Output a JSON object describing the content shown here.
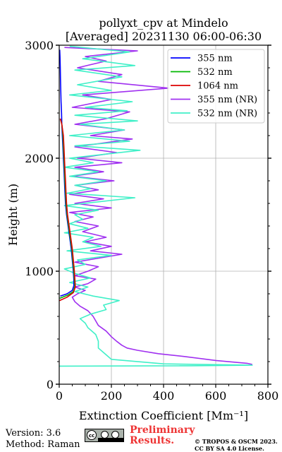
{
  "chart_data": {
    "type": "line",
    "title": "pollyxt_cpv at Mindelo",
    "subtitle": "[Averaged] 20231130 06:00-06:30",
    "xlabel": "Extinction Coefficient [Mm⁻¹]",
    "ylabel": "Height (m)",
    "xlim": [
      0,
      800
    ],
    "ylim": [
      0,
      3000
    ],
    "xticks": [
      "0",
      "200",
      "400",
      "600",
      "800"
    ],
    "yticks": [
      "0",
      "1000",
      "2000",
      "3000"
    ],
    "grid": true,
    "legend_position": "top-right",
    "series": [
      {
        "name": "355 nm",
        "color": "#0000ff",
        "points": [
          [
            4,
            780
          ],
          [
            30,
            800
          ],
          [
            50,
            830
          ],
          [
            56,
            870
          ],
          [
            56,
            930
          ],
          [
            54,
            1000
          ],
          [
            50,
            1100
          ],
          [
            46,
            1200
          ],
          [
            40,
            1300
          ],
          [
            34,
            1400
          ],
          [
            28,
            1500
          ],
          [
            24,
            1600
          ],
          [
            22,
            1700
          ],
          [
            20,
            1800
          ],
          [
            18,
            1900
          ],
          [
            16,
            2000
          ],
          [
            14,
            2100
          ],
          [
            12,
            2200
          ],
          [
            10,
            2300
          ],
          [
            9,
            2400
          ],
          [
            7,
            2500
          ],
          [
            6,
            2600
          ],
          [
            5,
            2700
          ],
          [
            4,
            2800
          ],
          [
            3,
            2900
          ],
          [
            2,
            2960
          ]
        ]
      },
      {
        "name": "532 nm",
        "color": "#00b800",
        "points": [
          [
            2,
            760
          ],
          [
            34,
            790
          ],
          [
            54,
            820
          ],
          [
            60,
            870
          ],
          [
            58,
            930
          ],
          [
            56,
            1000
          ],
          [
            52,
            1100
          ],
          [
            48,
            1200
          ],
          [
            42,
            1300
          ],
          [
            36,
            1400
          ],
          [
            30,
            1500
          ],
          [
            26,
            1600
          ],
          [
            24,
            1700
          ],
          [
            22,
            1800
          ],
          [
            20,
            1900
          ],
          [
            18,
            2000
          ],
          [
            16,
            2100
          ],
          [
            14,
            2200
          ],
          [
            10,
            2300
          ],
          [
            6,
            2340
          ]
        ]
      },
      {
        "name": "1064 nm",
        "color": "#dd0000",
        "points": [
          [
            1,
            740
          ],
          [
            30,
            770
          ],
          [
            54,
            810
          ],
          [
            62,
            860
          ],
          [
            60,
            930
          ],
          [
            58,
            1000
          ],
          [
            54,
            1100
          ],
          [
            50,
            1200
          ],
          [
            44,
            1300
          ],
          [
            38,
            1400
          ],
          [
            32,
            1500
          ],
          [
            28,
            1600
          ],
          [
            26,
            1700
          ],
          [
            24,
            1800
          ],
          [
            22,
            1900
          ],
          [
            20,
            2000
          ],
          [
            18,
            2100
          ],
          [
            16,
            2200
          ],
          [
            10,
            2300
          ],
          [
            4,
            2350
          ]
        ]
      },
      {
        "name": "355 nm (NR)",
        "color": "#a030f0",
        "points": [
          [
            740,
            175
          ],
          [
            720,
            185
          ],
          [
            600,
            210
          ],
          [
            480,
            245
          ],
          [
            380,
            270
          ],
          [
            300,
            300
          ],
          [
            260,
            320
          ],
          [
            240,
            345
          ],
          [
            220,
            380
          ],
          [
            200,
            420
          ],
          [
            180,
            470
          ],
          [
            150,
            520
          ],
          [
            140,
            560
          ],
          [
            130,
            600
          ],
          [
            110,
            650
          ],
          [
            80,
            690
          ],
          [
            60,
            730
          ],
          [
            50,
            770
          ],
          [
            70,
            800
          ],
          [
            100,
            830
          ],
          [
            60,
            860
          ],
          [
            110,
            890
          ],
          [
            140,
            930
          ],
          [
            60,
            960
          ],
          [
            110,
            1000
          ],
          [
            150,
            1040
          ],
          [
            60,
            1080
          ],
          [
            240,
            1150
          ],
          [
            120,
            1180
          ],
          [
            200,
            1220
          ],
          [
            100,
            1260
          ],
          [
            180,
            1300
          ],
          [
            90,
            1350
          ],
          [
            150,
            1400
          ],
          [
            60,
            1440
          ],
          [
            130,
            1480
          ],
          [
            40,
            1520
          ],
          [
            200,
            1560
          ],
          [
            60,
            1600
          ],
          [
            170,
            1640
          ],
          [
            40,
            1680
          ],
          [
            150,
            1720
          ],
          [
            60,
            1760
          ],
          [
            210,
            1800
          ],
          [
            50,
            1840
          ],
          [
            170,
            1880
          ],
          [
            60,
            1920
          ],
          [
            240,
            1960
          ],
          [
            70,
            2000
          ],
          [
            220,
            2050
          ],
          [
            60,
            2100
          ],
          [
            280,
            2170
          ],
          [
            120,
            2200
          ],
          [
            250,
            2250
          ],
          [
            60,
            2300
          ],
          [
            180,
            2350
          ],
          [
            270,
            2410
          ],
          [
            50,
            2450
          ],
          [
            200,
            2520
          ],
          [
            90,
            2560
          ],
          [
            420,
            2620
          ],
          [
            150,
            2680
          ],
          [
            240,
            2740
          ],
          [
            70,
            2800
          ],
          [
            180,
            2860
          ],
          [
            100,
            2900
          ],
          [
            300,
            2950
          ],
          [
            20,
            2980
          ]
        ]
      },
      {
        "name": "532 nm (NR)",
        "color": "#40f0c8",
        "points": [
          [
            0,
            160
          ],
          [
            500,
            163
          ],
          [
            740,
            168
          ],
          [
            400,
            180
          ],
          [
            200,
            220
          ],
          [
            180,
            260
          ],
          [
            150,
            320
          ],
          [
            150,
            380
          ],
          [
            140,
            440
          ],
          [
            110,
            500
          ],
          [
            100,
            540
          ],
          [
            80,
            580
          ],
          [
            120,
            620
          ],
          [
            180,
            660
          ],
          [
            170,
            700
          ],
          [
            230,
            740
          ],
          [
            130,
            780
          ],
          [
            60,
            820
          ],
          [
            110,
            860
          ],
          [
            40,
            900
          ],
          [
            120,
            940
          ],
          [
            60,
            980
          ],
          [
            20,
            1020
          ],
          [
            100,
            1060
          ],
          [
            70,
            1100
          ],
          [
            200,
            1140
          ],
          [
            30,
            1180
          ],
          [
            160,
            1220
          ],
          [
            90,
            1260
          ],
          [
            130,
            1300
          ],
          [
            20,
            1340
          ],
          [
            110,
            1380
          ],
          [
            40,
            1420
          ],
          [
            90,
            1460
          ],
          [
            60,
            1500
          ],
          [
            150,
            1540
          ],
          [
            20,
            1580
          ],
          [
            290,
            1650
          ],
          [
            30,
            1690
          ],
          [
            120,
            1730
          ],
          [
            60,
            1760
          ],
          [
            180,
            1800
          ],
          [
            40,
            1840
          ],
          [
            150,
            1880
          ],
          [
            20,
            1920
          ],
          [
            130,
            1960
          ],
          [
            40,
            2000
          ],
          [
            310,
            2070
          ],
          [
            60,
            2110
          ],
          [
            270,
            2150
          ],
          [
            40,
            2200
          ],
          [
            250,
            2250
          ],
          [
            80,
            2300
          ],
          [
            300,
            2330
          ],
          [
            60,
            2380
          ],
          [
            260,
            2420
          ],
          [
            100,
            2450
          ],
          [
            280,
            2500
          ],
          [
            40,
            2560
          ],
          [
            200,
            2600
          ],
          [
            70,
            2650
          ],
          [
            240,
            2720
          ],
          [
            60,
            2780
          ],
          [
            290,
            2820
          ],
          [
            90,
            2880
          ],
          [
            270,
            2940
          ],
          [
            40,
            2990
          ]
        ]
      }
    ]
  },
  "footer": {
    "version": "Version: 3.6",
    "method": "Method: Raman",
    "license_badge": {
      "cc": "cc",
      "by": "BY",
      "sa": "SA"
    },
    "prelim_line1": "Preliminary",
    "prelim_line2": "Results.",
    "copyright_line1": "© TROPOS & OSCM 2023.",
    "copyright_line2": "CC BY SA 4.0 License."
  }
}
